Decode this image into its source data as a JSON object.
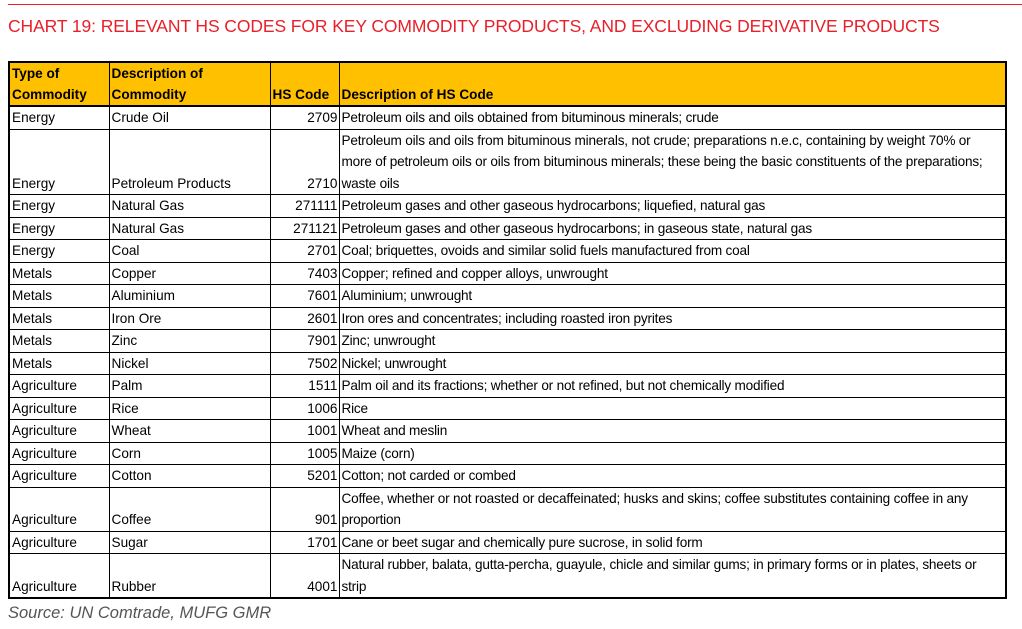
{
  "title": "CHART 19: RELEVANT HS CODES FOR KEY COMMODITY PRODUCTS, AND EXCLUDING DERIVATIVE PRODUCTS",
  "colors": {
    "title": "#e8202a",
    "header_bg": "#ffc000"
  },
  "table": {
    "headers": {
      "type": "Type of Commodity",
      "commodity": "Description of Commodity",
      "code": "HS Code",
      "description": "Description of HS Code"
    },
    "rows": [
      {
        "type": "Energy",
        "commodity": "Crude Oil",
        "code": "2709",
        "description": "Petroleum oils and oils obtained from bituminous minerals; crude"
      },
      {
        "type": "Energy",
        "commodity": "Petroleum Products",
        "code": "2710",
        "description": "Petroleum oils and oils from bituminous minerals, not crude; preparations n.e.c, containing by weight 70% or more of petroleum oils or oils from bituminous minerals; these being the basic constituents of the preparations; waste oils"
      },
      {
        "type": "Energy",
        "commodity": "Natural Gas",
        "code": "271111",
        "description": "Petroleum gases and other gaseous hydrocarbons; liquefied, natural gas"
      },
      {
        "type": "Energy",
        "commodity": "Natural Gas",
        "code": "271121",
        "description": "Petroleum gases and other gaseous hydrocarbons; in gaseous state, natural gas"
      },
      {
        "type": "Energy",
        "commodity": "Coal",
        "code": "2701",
        "description": "Coal; briquettes, ovoids and similar solid fuels manufactured from coal"
      },
      {
        "type": "Metals",
        "commodity": "Copper",
        "code": "7403",
        "description": "Copper; refined and copper alloys, unwrought"
      },
      {
        "type": "Metals",
        "commodity": "Aluminium",
        "code": "7601",
        "description": "Aluminium; unwrought"
      },
      {
        "type": "Metals",
        "commodity": "Iron Ore",
        "code": "2601",
        "description": "Iron ores and concentrates; including roasted iron pyrites"
      },
      {
        "type": "Metals",
        "commodity": "Zinc",
        "code": "7901",
        "description": "Zinc; unwrought"
      },
      {
        "type": "Metals",
        "commodity": "Nickel",
        "code": "7502",
        "description": "Nickel; unwrought"
      },
      {
        "type": "Agriculture",
        "commodity": "Palm",
        "code": "1511",
        "description": "Palm oil and its fractions; whether or not refined, but not chemically modified"
      },
      {
        "type": "Agriculture",
        "commodity": "Rice",
        "code": "1006",
        "description": "Rice"
      },
      {
        "type": "Agriculture",
        "commodity": "Wheat",
        "code": "1001",
        "description": "Wheat and meslin"
      },
      {
        "type": "Agriculture",
        "commodity": "Corn",
        "code": "1005",
        "description": "Maize (corn)"
      },
      {
        "type": "Agriculture",
        "commodity": "Cotton",
        "code": "5201",
        "description": "Cotton; not carded or combed"
      },
      {
        "type": "Agriculture",
        "commodity": "Coffee",
        "code": "901",
        "description": "Coffee, whether or not roasted or decaffeinated; husks and skins; coffee substitutes containing coffee in any proportion"
      },
      {
        "type": "Agriculture",
        "commodity": "Sugar",
        "code": "1701",
        "description": "Cane or beet sugar and chemically pure sucrose, in solid form"
      },
      {
        "type": "Agriculture",
        "commodity": "Rubber",
        "code": "4001",
        "description": "Natural rubber, balata, gutta-percha, guayule, chicle and similar gums; in primary forms or in plates, sheets or strip"
      }
    ]
  },
  "source": "Source: UN Comtrade, MUFG GMR"
}
